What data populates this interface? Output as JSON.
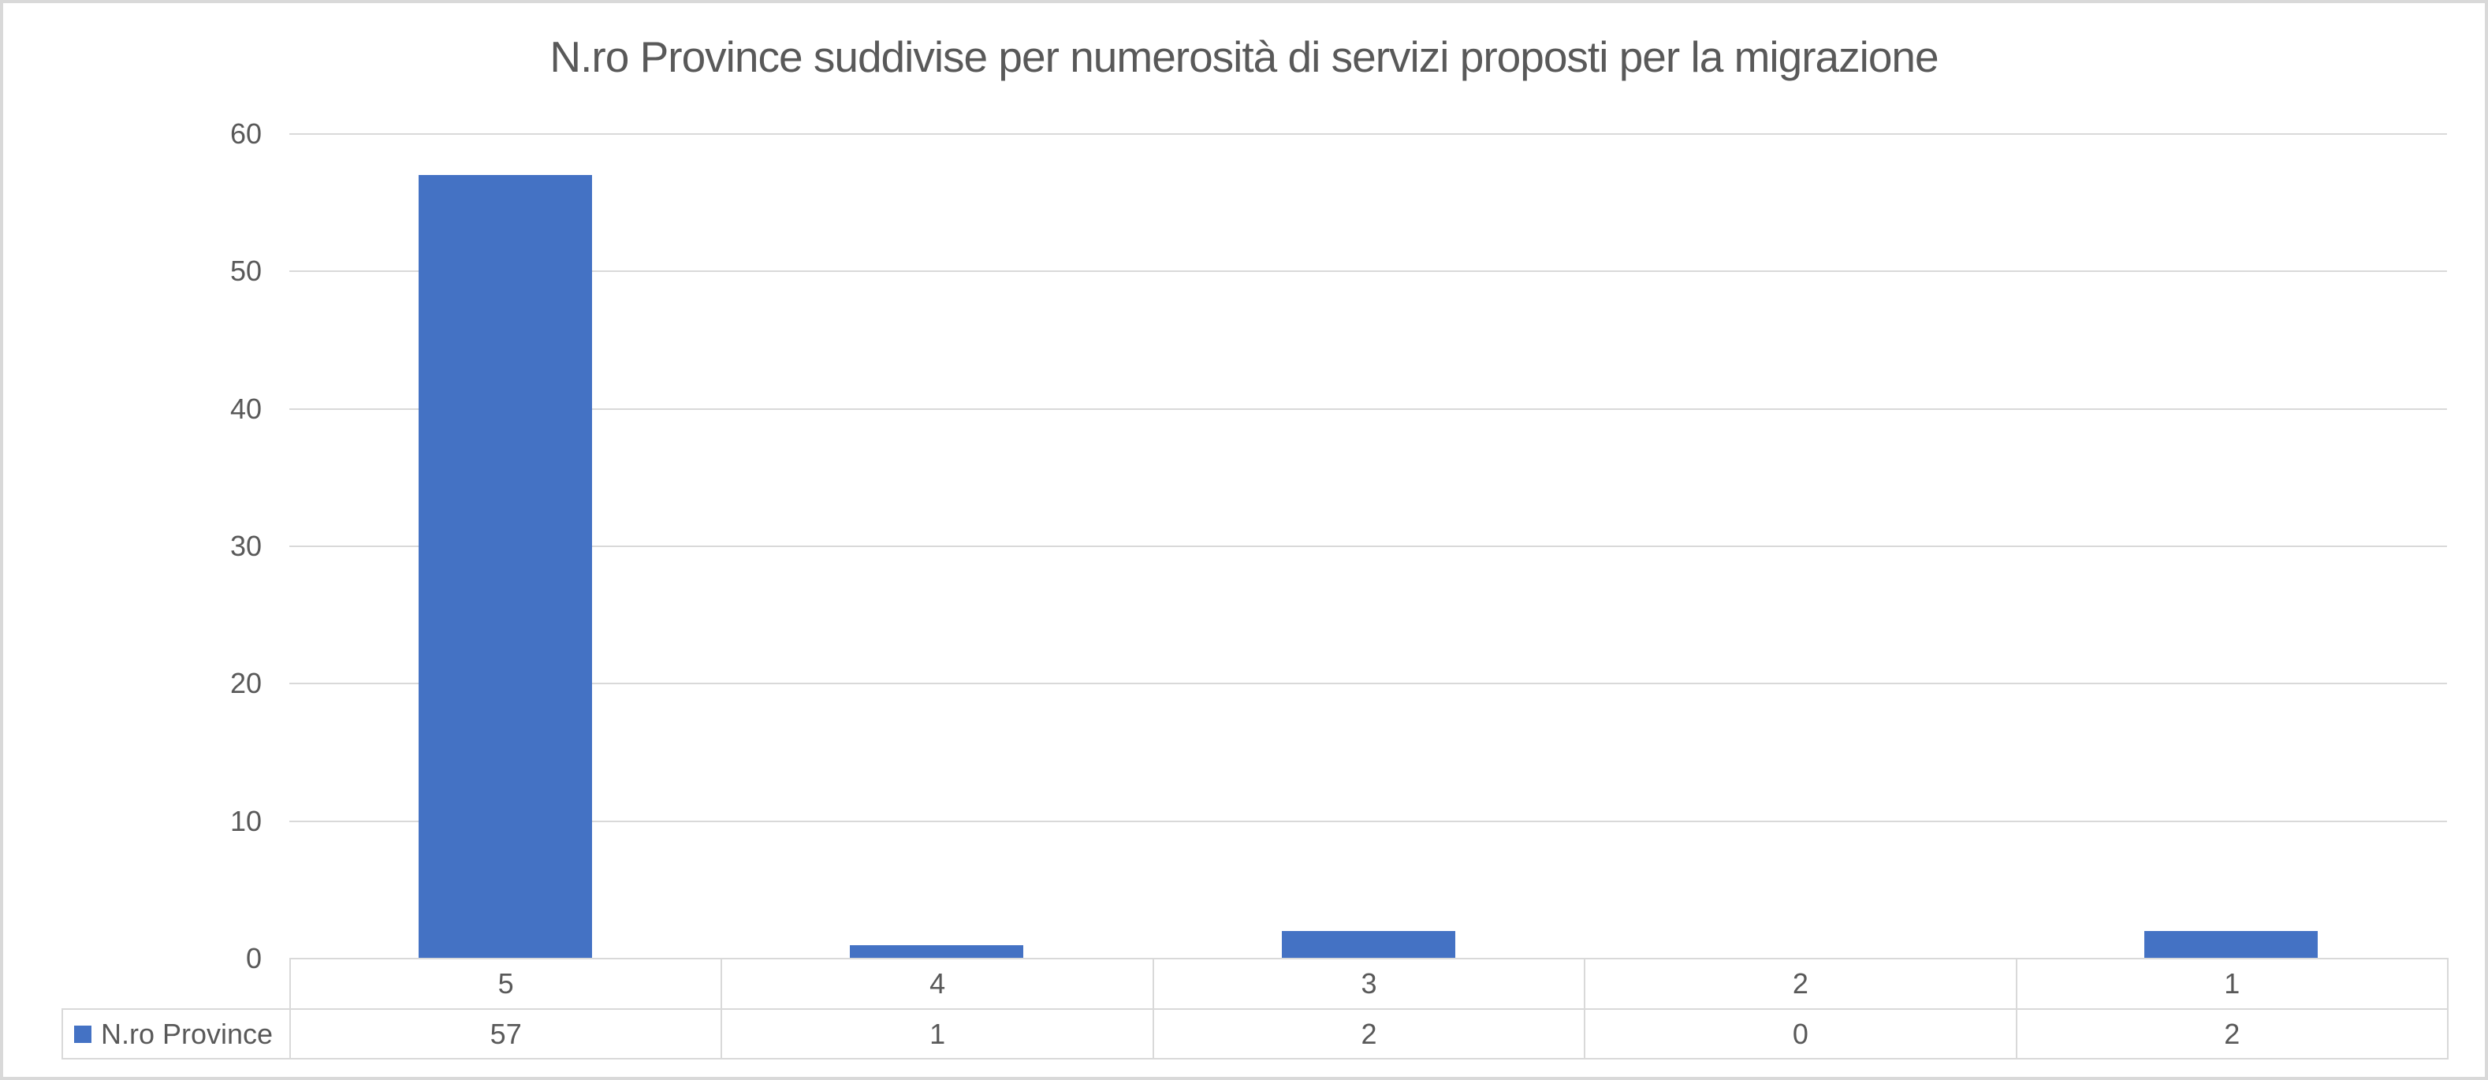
{
  "chart_data": {
    "type": "bar",
    "title": "N.ro Province suddivise per numerosità di servizi proposti per la migrazione",
    "categories": [
      "5",
      "4",
      "3",
      "2",
      "1"
    ],
    "series": [
      {
        "name": "N.ro Province",
        "values": [
          57,
          1,
          2,
          0,
          2
        ]
      }
    ],
    "xlabel": "",
    "ylabel": "",
    "ylim": [
      0,
      60
    ],
    "yticks": [
      0,
      10,
      20,
      30,
      40,
      50,
      60
    ],
    "grid": true,
    "legend_position": "data-table-left",
    "data_table_shown": true
  },
  "colors": {
    "bar": "#4472C4",
    "gridline": "#D9D9D9",
    "table_border": "#D9D9D9",
    "text": "#595959",
    "background": "#FFFFFF",
    "legend_marker": "#4472C4"
  },
  "legend": {
    "marker": "square-icon",
    "label": "N.ro Province"
  }
}
